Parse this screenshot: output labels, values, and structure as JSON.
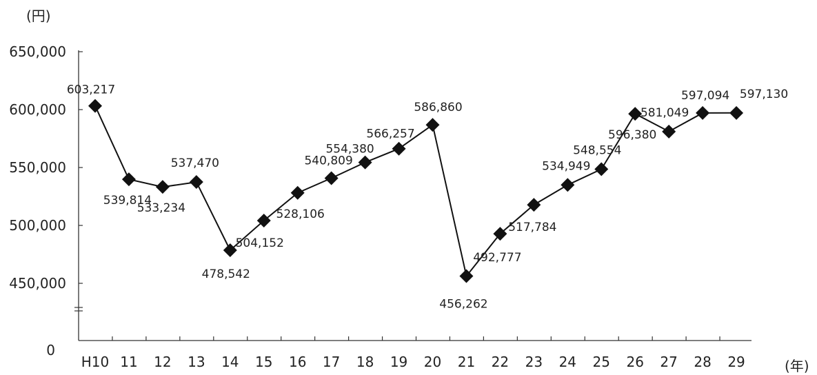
{
  "chart_data": {
    "type": "line",
    "y_unit_label": "(円)",
    "x_unit_label": "(年)",
    "categories": [
      "H10",
      "11",
      "12",
      "13",
      "14",
      "15",
      "16",
      "17",
      "18",
      "19",
      "20",
      "21",
      "22",
      "23",
      "24",
      "25",
      "26",
      "27",
      "28",
      "29"
    ],
    "series": [
      {
        "values": [
          603217,
          539814,
          533234,
          537470,
          478542,
          504152,
          528106,
          540809,
          554380,
          566257,
          586860,
          456262,
          492777,
          517784,
          534949,
          548554,
          596380,
          581049,
          597094,
          597130
        ],
        "labels": [
          "603,217",
          "539,814",
          "533,234",
          "537,470",
          "478,542",
          "504,152",
          "528,106",
          "540,809",
          "554,380",
          "566,257",
          "586,860",
          "456,262",
          "492,777",
          "517,784",
          "534,949",
          "548,554",
          "596,380",
          "581,049",
          "597,094",
          "597,130"
        ],
        "color": "#111111",
        "marker": "diamond"
      }
    ],
    "ylim": [
      0,
      650000
    ],
    "y_axis_break": [
      0,
      450000
    ],
    "yticks": [
      0,
      450000,
      500000,
      550000,
      600000,
      650000
    ],
    "ytick_labels": [
      "0",
      "450,000",
      "500,000",
      "550,000",
      "600,000",
      "650,000"
    ],
    "grid": false,
    "legend": "none"
  }
}
